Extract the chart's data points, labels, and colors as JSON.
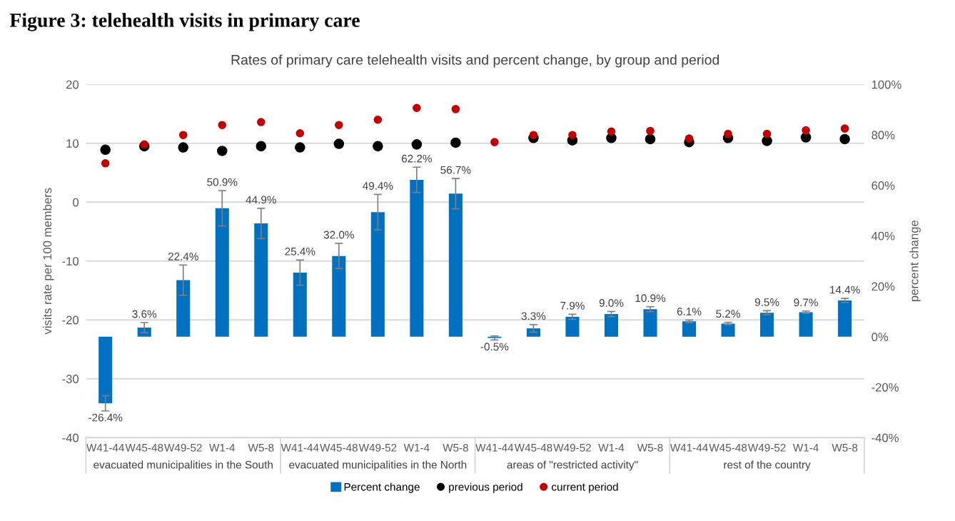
{
  "chart_data": {
    "type": "bar",
    "title": "Figure 3: telehealth visits in primary care",
    "subtitle": "Rates of primary care telehealth visits and percent change, by group and period",
    "ylabel": "visits rate per 100 members",
    "y2label": "percent change",
    "categories": [
      "W41-44",
      "W45-48",
      "W49-52",
      "W1-4",
      "W5-8",
      "W41-44",
      "W45-48",
      "W49-52",
      "W1-4",
      "W5-8",
      "W41-44",
      "W45-48",
      "W49-52",
      "W1-4",
      "W5-8",
      "W41-44",
      "W45-48",
      "W49-52",
      "W1-4",
      "W5-8"
    ],
    "annotations": [
      "evacuated municipalities in the South",
      "evacuated municipalities in the North",
      "areas of \"restricted activity\"",
      "rest of the country"
    ],
    "series": [
      {
        "name": "Percent change",
        "axis": "y2",
        "color": "#0070c0",
        "values": [
          -26.4,
          3.6,
          22.4,
          50.9,
          44.9,
          25.4,
          32.0,
          49.4,
          62.2,
          56.7,
          -0.5,
          3.3,
          7.9,
          9.0,
          10.9,
          6.1,
          5.2,
          9.5,
          9.7,
          14.4
        ],
        "errors": [
          3,
          2,
          6,
          7,
          6,
          5,
          5,
          7,
          5,
          6,
          0.8,
          1.5,
          1,
          1,
          1,
          0.5,
          0.5,
          0.8,
          0.5,
          0.8
        ],
        "value_labels": [
          "-26.4%",
          "3.6%",
          "22.4%",
          "50.9%",
          "44.9%",
          "25.4%",
          "32.0%",
          "49.4%",
          "62.2%",
          "56.7%",
          "-0.5%",
          "3.3%",
          "7.9%",
          "9.0%",
          "10.9%",
          "6.1%",
          "5.2%",
          "9.5%",
          "9.7%",
          "14.4%"
        ]
      },
      {
        "name": "previous period",
        "type": "scatter",
        "color": "#000000",
        "marker": "circle",
        "values": [
          8.9,
          9.5,
          9.3,
          8.7,
          9.5,
          9.3,
          9.9,
          9.5,
          9.8,
          10.1,
          null,
          10.9,
          10.5,
          10.9,
          10.7,
          10.2,
          10.9,
          10.4,
          11.0,
          10.7
        ]
      },
      {
        "name": "current period",
        "type": "scatter",
        "color": "#c00000",
        "marker": "circle",
        "values": [
          6.6,
          9.8,
          11.4,
          13.1,
          13.6,
          11.7,
          13.1,
          14.0,
          16.0,
          15.8,
          10.2,
          11.4,
          11.4,
          12.0,
          12.1,
          10.8,
          11.6,
          11.6,
          12.2,
          12.5
        ]
      }
    ],
    "ylim": [
      -40,
      20
    ],
    "yticks": [
      -40,
      -30,
      -20,
      -10,
      0,
      10,
      20
    ],
    "y2lim": [
      -40,
      100
    ],
    "y2ticks": [
      {
        "value": -40,
        "label": "-40%"
      },
      {
        "value": -20,
        "label": "-20%"
      },
      {
        "value": 0,
        "label": "0%"
      },
      {
        "value": 20,
        "label": "20%"
      },
      {
        "value": 40,
        "label": "40%"
      },
      {
        "value": 60,
        "label": "60%"
      },
      {
        "value": 80,
        "label": "80%"
      },
      {
        "value": 100,
        "label": "100%"
      }
    ],
    "grid": "y",
    "legend": "bottom"
  }
}
